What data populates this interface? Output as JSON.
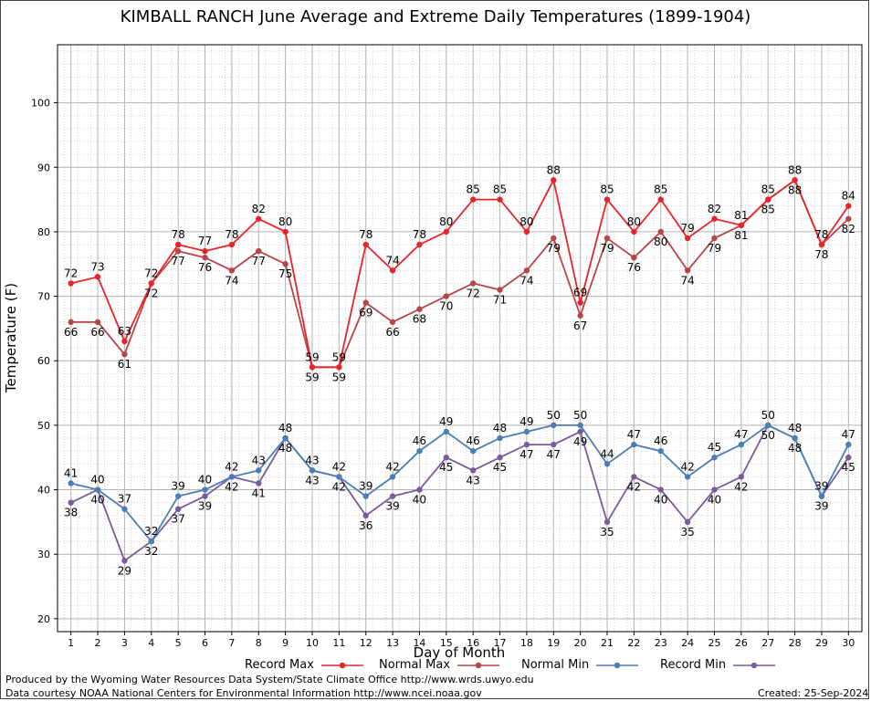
{
  "chart_data": {
    "type": "line",
    "title": "KIMBALL RANCH June Average and Extreme Daily Temperatures (1899-1904)",
    "xlabel": "Day of Month",
    "ylabel": "Temperature (F)",
    "x": [
      1,
      2,
      3,
      4,
      5,
      6,
      7,
      8,
      9,
      10,
      11,
      12,
      13,
      14,
      15,
      16,
      17,
      18,
      19,
      20,
      21,
      22,
      23,
      24,
      25,
      26,
      27,
      28,
      29,
      30
    ],
    "xlim": [
      0.5,
      30.5
    ],
    "ylim": [
      18,
      109
    ],
    "yticks": [
      20,
      30,
      40,
      50,
      60,
      70,
      80,
      90,
      100
    ],
    "grid": true,
    "legend": "bottom",
    "series": [
      {
        "name": "Record Max",
        "color": "#e8242b",
        "labels": "above",
        "values": [
          72,
          73,
          63,
          72,
          78,
          77,
          78,
          82,
          80,
          59,
          59,
          78,
          74,
          78,
          80,
          85,
          85,
          80,
          88,
          69,
          85,
          80,
          85,
          79,
          82,
          81,
          85,
          88,
          78,
          84
        ]
      },
      {
        "name": "Normal Max",
        "color": "#b84545",
        "labels": "below",
        "values": [
          66,
          66,
          61,
          72,
          77,
          76,
          74,
          77,
          75,
          59,
          59,
          69,
          66,
          68,
          70,
          72,
          71,
          74,
          79,
          67,
          79,
          76,
          80,
          74,
          79,
          81,
          85,
          88,
          78,
          82
        ]
      },
      {
        "name": "Normal Min",
        "color": "#4a7fb5",
        "labels": "above",
        "values": [
          41,
          40,
          37,
          32,
          39,
          40,
          42,
          43,
          48,
          43,
          42,
          39,
          42,
          46,
          49,
          46,
          48,
          49,
          50,
          50,
          44,
          47,
          46,
          42,
          45,
          47,
          50,
          48,
          39,
          47
        ]
      },
      {
        "name": "Record Min",
        "color": "#7a5a9c",
        "labels": "below",
        "values": [
          38,
          40,
          29,
          32,
          37,
          39,
          42,
          41,
          48,
          43,
          42,
          36,
          39,
          40,
          45,
          43,
          45,
          47,
          47,
          49,
          35,
          42,
          40,
          35,
          40,
          42,
          50,
          48,
          39,
          45
        ]
      }
    ]
  },
  "footer": {
    "produced": "Produced by the Wyoming Water Resources Data System/State Climate Office http://www.wrds.uwyo.edu",
    "courtesy": "Data courtesy NOAA National Centers for Environmental Information http://www.ncei.noaa.gov",
    "created": "Created:  25-Sep-2024"
  }
}
